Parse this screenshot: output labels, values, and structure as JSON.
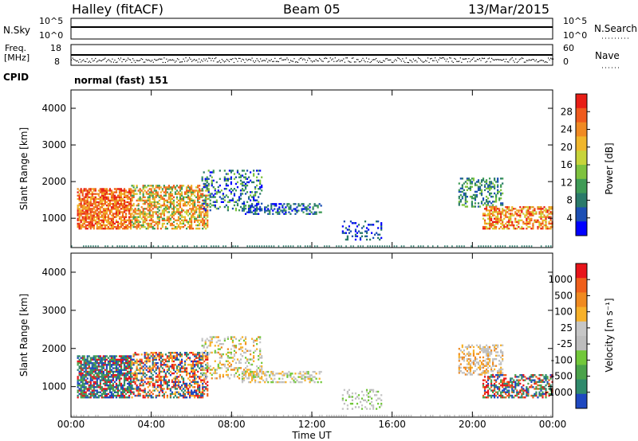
{
  "header": {
    "station": "Halley (fitACF)",
    "beam": "Beam 05",
    "date": "13/Mar/2015"
  },
  "panels": {
    "nsky_label": "N.Sky",
    "nsky_ticks": [
      "10^5",
      "10^0"
    ],
    "nsearch_label": "N.Search",
    "nsearch_ticks": [
      "10^5",
      "10^0"
    ],
    "freq_label_1": "Freq.",
    "freq_label_2": "[MHz]",
    "freq_ticks": [
      "18",
      "8"
    ],
    "nave_label": "Nave",
    "nave_ticks": [
      "60",
      "0"
    ],
    "cpid_label": "CPID",
    "cpid_value": "normal (fast) 151"
  },
  "chart_data": [
    {
      "type": "heatmap",
      "name": "power-panel",
      "ylabel": "Slant Range [km]",
      "yticks": [
        "4000",
        "3000",
        "2000",
        "1000"
      ],
      "ylim": [
        200,
        4500
      ],
      "xlim": [
        0,
        24
      ],
      "colorbar": {
        "label": "Power [dB]",
        "ticks": [
          "28",
          "24",
          "20",
          "16",
          "12",
          "8",
          "4"
        ],
        "colors": [
          "#0000ff",
          "#1c4fb4",
          "#2a7a6a",
          "#3f9b56",
          "#7ec23e",
          "#c7d43a",
          "#f0b62b",
          "#f08a23",
          "#ef5a1d",
          "#e81e16"
        ]
      }
    },
    {
      "type": "heatmap",
      "name": "velocity-panel",
      "ylabel": "Slant Range [km]",
      "yticks": [
        "4000",
        "3000",
        "2000",
        "1000"
      ],
      "ylim": [
        200,
        4500
      ],
      "xlim": [
        0,
        24
      ],
      "xticks": [
        "00:00",
        "04:00",
        "08:00",
        "12:00",
        "16:00",
        "20:00",
        "00:00"
      ],
      "xlabel": "Time UT",
      "colorbar": {
        "label": "Velocity [m s⁻¹]",
        "ticks": [
          "1000",
          "500",
          "100",
          "25",
          "-25",
          "-100",
          "-500",
          "-1000"
        ],
        "colors": [
          "#1e48c0",
          "#2f8a6c",
          "#4aa24a",
          "#72c83a",
          "#bdbdbd",
          "#c6c6c6",
          "#f7b12a",
          "#f08a20",
          "#ef5f1b",
          "#e8141a"
        ]
      }
    }
  ]
}
